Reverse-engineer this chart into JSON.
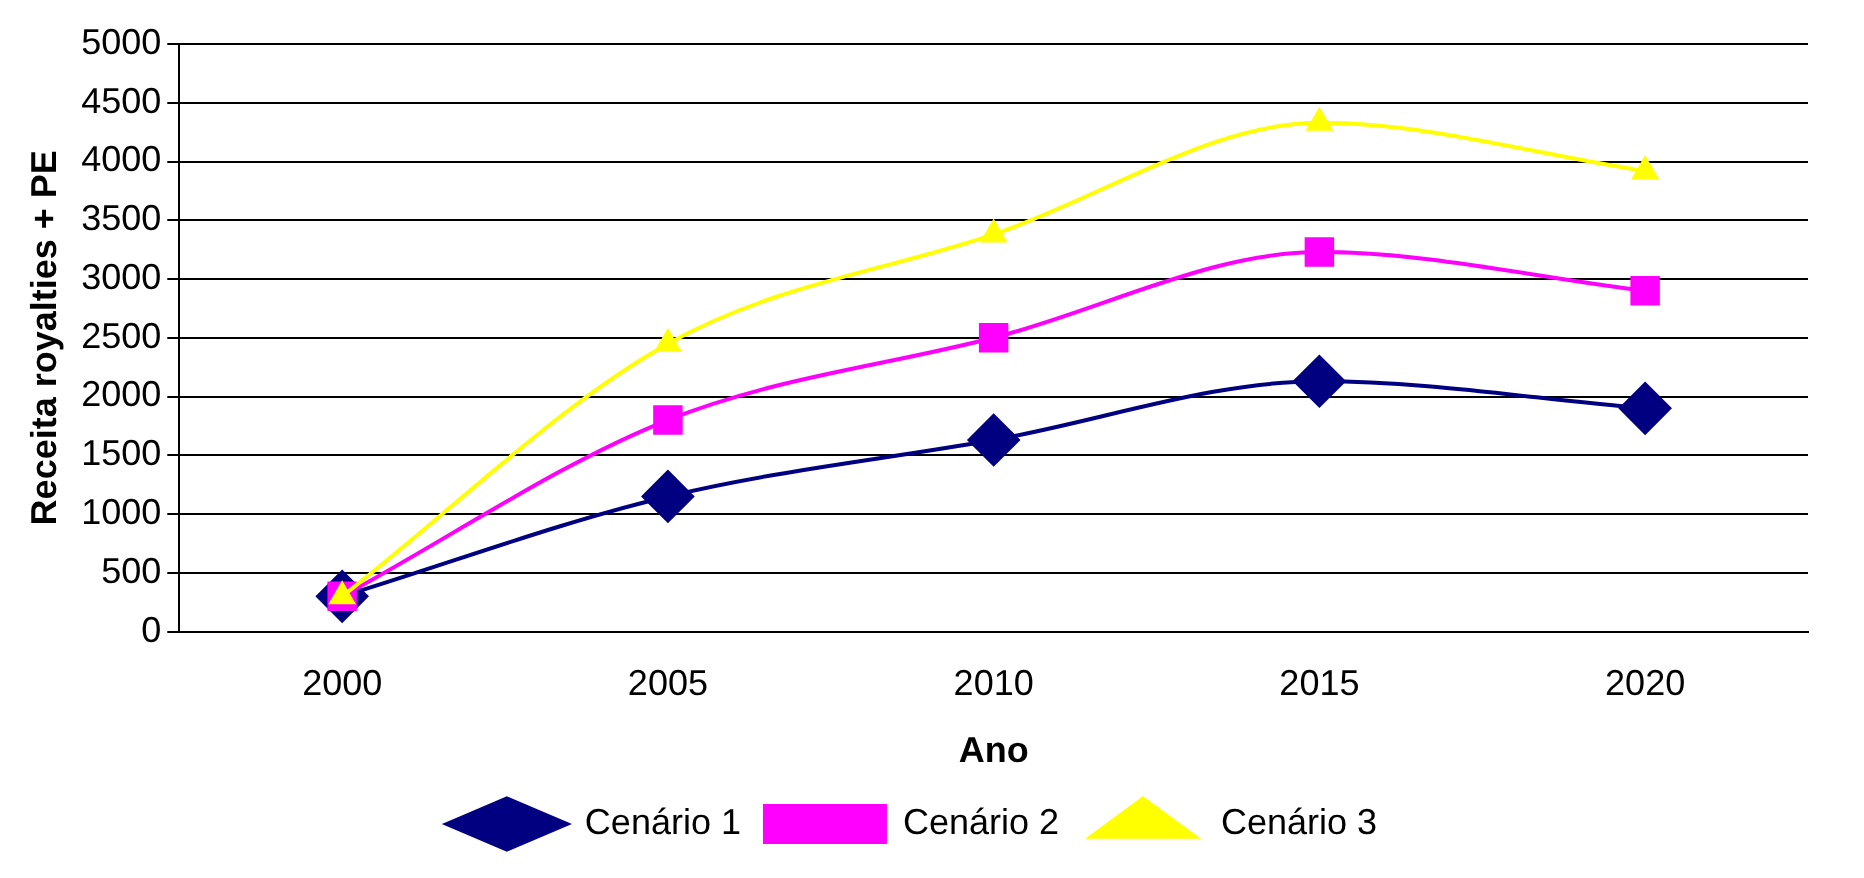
{
  "chart_data": {
    "type": "line",
    "xlabel": "Ano",
    "ylabel": "Receita royalties + PE",
    "categories": [
      "2000",
      "2005",
      "2010",
      "2015",
      "2020"
    ],
    "series": [
      {
        "name": "Cenário 1",
        "color": "#000080",
        "marker": "diamond",
        "values": [
          300,
          1150,
          1630,
          2130,
          1900
        ]
      },
      {
        "name": "Cenário 2",
        "color": "#ff00ff",
        "marker": "square",
        "values": [
          300,
          1800,
          2500,
          3230,
          2900
        ]
      },
      {
        "name": "Cenário 3",
        "color": "#ffff00",
        "marker": "triangle",
        "values": [
          300,
          2450,
          3380,
          4330,
          3920
        ]
      }
    ],
    "ylim": [
      0,
      5000
    ],
    "yticks": [
      0,
      500,
      1000,
      1500,
      2000,
      2500,
      3000,
      3500,
      4000,
      4500,
      5000
    ],
    "grid": "y",
    "legend": "bottom",
    "line_style": "solid"
  }
}
